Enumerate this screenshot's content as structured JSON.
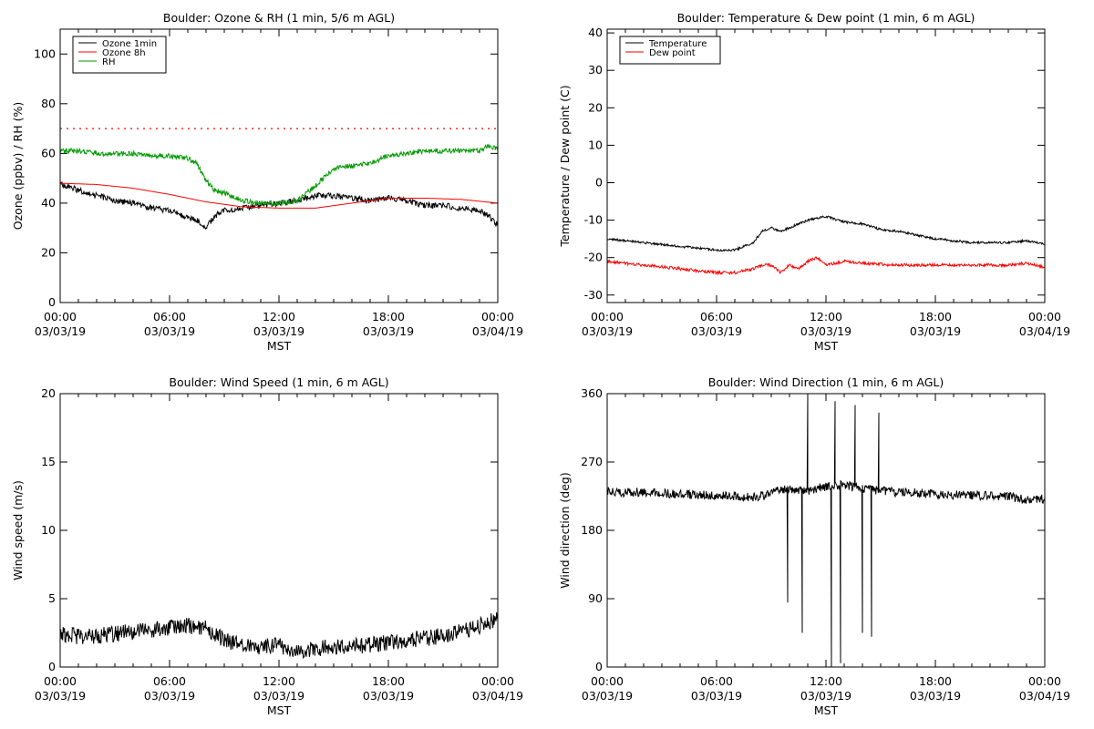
{
  "chart_data": [
    {
      "type": "line",
      "title": "Boulder: Ozone & RH (1 min, 5/6 m AGL)",
      "xlabel": "MST",
      "ylabel": "Ozone (ppbv) / RH (%)",
      "xlim": [
        0,
        24
      ],
      "ylim": [
        0,
        110
      ],
      "yticks": [
        0,
        20,
        40,
        60,
        80,
        100
      ],
      "xticks": [
        {
          "time": "00:00",
          "date": "03/03/19"
        },
        {
          "time": "06:00",
          "date": "03/03/19"
        },
        {
          "time": "12:00",
          "date": "03/03/19"
        },
        {
          "time": "18:00",
          "date": "03/03/19"
        },
        {
          "time": "00:00",
          "date": "03/04/19"
        }
      ],
      "legend": {
        "placement": "top-left"
      },
      "reference_line": {
        "y": 70,
        "color": "#ff0000",
        "style": "dotted"
      },
      "series": [
        {
          "name": "Ozone 1min",
          "color": "#000000",
          "noise": 1.2,
          "x": [
            0,
            1,
            2,
            3,
            4,
            5,
            6,
            7,
            7.5,
            8,
            8.5,
            9,
            10,
            11,
            12,
            13,
            14,
            15,
            16,
            17,
            18,
            19,
            20,
            21,
            22,
            23,
            23.5,
            24
          ],
          "y": [
            48,
            45,
            43,
            41,
            40,
            38,
            37,
            34,
            33,
            30,
            35,
            37,
            38,
            39,
            40,
            41,
            43,
            43,
            42,
            41,
            42,
            41,
            39,
            39,
            38,
            37,
            35,
            31
          ]
        },
        {
          "name": "Ozone 8h",
          "color": "#ff0000",
          "noise": 0,
          "x": [
            0,
            2,
            4,
            6,
            8,
            10,
            12,
            14,
            16,
            18,
            20,
            22,
            24
          ],
          "y": [
            48,
            47.5,
            46,
            43.5,
            40.5,
            38.5,
            38,
            38,
            40,
            42,
            42,
            41.5,
            40
          ]
        },
        {
          "name": "RH",
          "color": "#009900",
          "noise": 1.0,
          "x": [
            0,
            1,
            2,
            3,
            4,
            5,
            6,
            7,
            7.5,
            8,
            8.5,
            9,
            10,
            11,
            12,
            13,
            14,
            15,
            16,
            17,
            18,
            19,
            20,
            21,
            22,
            23,
            23.5,
            24
          ],
          "y": [
            61,
            61,
            60,
            60,
            60,
            59,
            59,
            58,
            56,
            49,
            45,
            44,
            41,
            40,
            40,
            41,
            47,
            54,
            55,
            56,
            59,
            60,
            61,
            61,
            61,
            61,
            63,
            62
          ]
        }
      ]
    },
    {
      "type": "line",
      "title": "Boulder: Temperature & Dew point (1 min, 6 m AGL)",
      "xlabel": "MST",
      "ylabel": "Temperature / Dew point (C)",
      "xlim": [
        0,
        24
      ],
      "ylim": [
        -32,
        41
      ],
      "yticks": [
        -30,
        -20,
        -10,
        0,
        10,
        20,
        30,
        40
      ],
      "xticks": [
        {
          "time": "00:00",
          "date": "03/03/19"
        },
        {
          "time": "06:00",
          "date": "03/03/19"
        },
        {
          "time": "12:00",
          "date": "03/03/19"
        },
        {
          "time": "18:00",
          "date": "03/03/19"
        },
        {
          "time": "00:00",
          "date": "03/04/19"
        }
      ],
      "legend": {
        "placement": "top-left"
      },
      "series": [
        {
          "name": "Temperature",
          "color": "#000000",
          "noise": 0.3,
          "x": [
            0,
            2,
            4,
            6,
            7,
            8,
            8.5,
            9,
            9.5,
            10,
            11,
            12,
            13,
            14,
            15,
            16,
            17,
            18,
            19,
            20,
            21,
            22,
            23,
            24
          ],
          "y": [
            -15,
            -16,
            -17,
            -18,
            -18,
            -16,
            -13,
            -12,
            -13,
            -12,
            -10,
            -9,
            -10.5,
            -11,
            -12.5,
            -13,
            -14,
            -15,
            -15.5,
            -16,
            -16,
            -16,
            -15.5,
            -16.5
          ]
        },
        {
          "name": "Dew point",
          "color": "#ff0000",
          "noise": 0.4,
          "x": [
            0,
            2,
            4,
            6,
            7,
            8,
            8.5,
            9,
            9.5,
            10,
            10.5,
            11,
            11.5,
            12,
            13,
            14,
            16,
            18,
            20,
            22,
            23,
            24
          ],
          "y": [
            -21,
            -22,
            -23,
            -24,
            -24,
            -23,
            -22,
            -22,
            -24,
            -22,
            -23,
            -21,
            -20,
            -22,
            -21,
            -21.5,
            -22,
            -22,
            -22,
            -22,
            -21.5,
            -22.5
          ]
        }
      ]
    },
    {
      "type": "line",
      "title": "Boulder: Wind Speed (1 min, 6 m AGL)",
      "xlabel": "MST",
      "ylabel": "Wind speed (m/s)",
      "xlim": [
        0,
        24
      ],
      "ylim": [
        0,
        20
      ],
      "yticks": [
        0,
        5,
        10,
        15,
        20
      ],
      "xticks": [
        {
          "time": "00:00",
          "date": "03/03/19"
        },
        {
          "time": "06:00",
          "date": "03/03/19"
        },
        {
          "time": "12:00",
          "date": "03/03/19"
        },
        {
          "time": "18:00",
          "date": "03/03/19"
        },
        {
          "time": "00:00",
          "date": "03/04/19"
        }
      ],
      "series": [
        {
          "color": "#000000",
          "noise": 0.6,
          "x": [
            0,
            1,
            2,
            3,
            4,
            5,
            6,
            7,
            8,
            9,
            10,
            11,
            12,
            13,
            14,
            15,
            16,
            17,
            18,
            19,
            20,
            21,
            22,
            23,
            24
          ],
          "y": [
            2.5,
            2.2,
            2.3,
            2.4,
            2.6,
            2.7,
            2.9,
            3.0,
            2.8,
            2.0,
            1.6,
            1.5,
            1.6,
            1.1,
            1.3,
            1.5,
            1.6,
            1.6,
            1.8,
            2.0,
            2.1,
            2.3,
            2.6,
            3.0,
            3.6
          ]
        }
      ]
    },
    {
      "type": "line",
      "title": "Boulder: Wind Direction (1 min, 6 m AGL)",
      "xlabel": "MST",
      "ylabel": "Wind direction (deg)",
      "xlim": [
        0,
        24
      ],
      "ylim": [
        0,
        360
      ],
      "yticks": [
        0,
        90,
        180,
        270,
        360
      ],
      "xticks": [
        {
          "time": "00:00",
          "date": "03/03/19"
        },
        {
          "time": "06:00",
          "date": "03/03/19"
        },
        {
          "time": "12:00",
          "date": "03/03/19"
        },
        {
          "time": "18:00",
          "date": "03/03/19"
        },
        {
          "time": "00:00",
          "date": "03/04/19"
        }
      ],
      "series": [
        {
          "color": "#000000",
          "noise": 6,
          "x": [
            0,
            2,
            4,
            6,
            8,
            8.5,
            9,
            10,
            11,
            12,
            13,
            14,
            15,
            16,
            18,
            20,
            22,
            23,
            24
          ],
          "y": [
            230,
            230,
            228,
            226,
            224,
            225,
            230,
            235,
            232,
            238,
            240,
            235,
            232,
            230,
            228,
            226,
            225,
            220,
            222
          ],
          "spikes": [
            [
              9.9,
              85
            ],
            [
              10.7,
              45
            ],
            [
              11.0,
              360
            ],
            [
              12.3,
              0
            ],
            [
              12.5,
              350
            ],
            [
              12.8,
              5
            ],
            [
              13.6,
              345
            ],
            [
              14.0,
              45
            ],
            [
              14.5,
              40
            ],
            [
              14.9,
              335
            ]
          ]
        }
      ]
    }
  ]
}
